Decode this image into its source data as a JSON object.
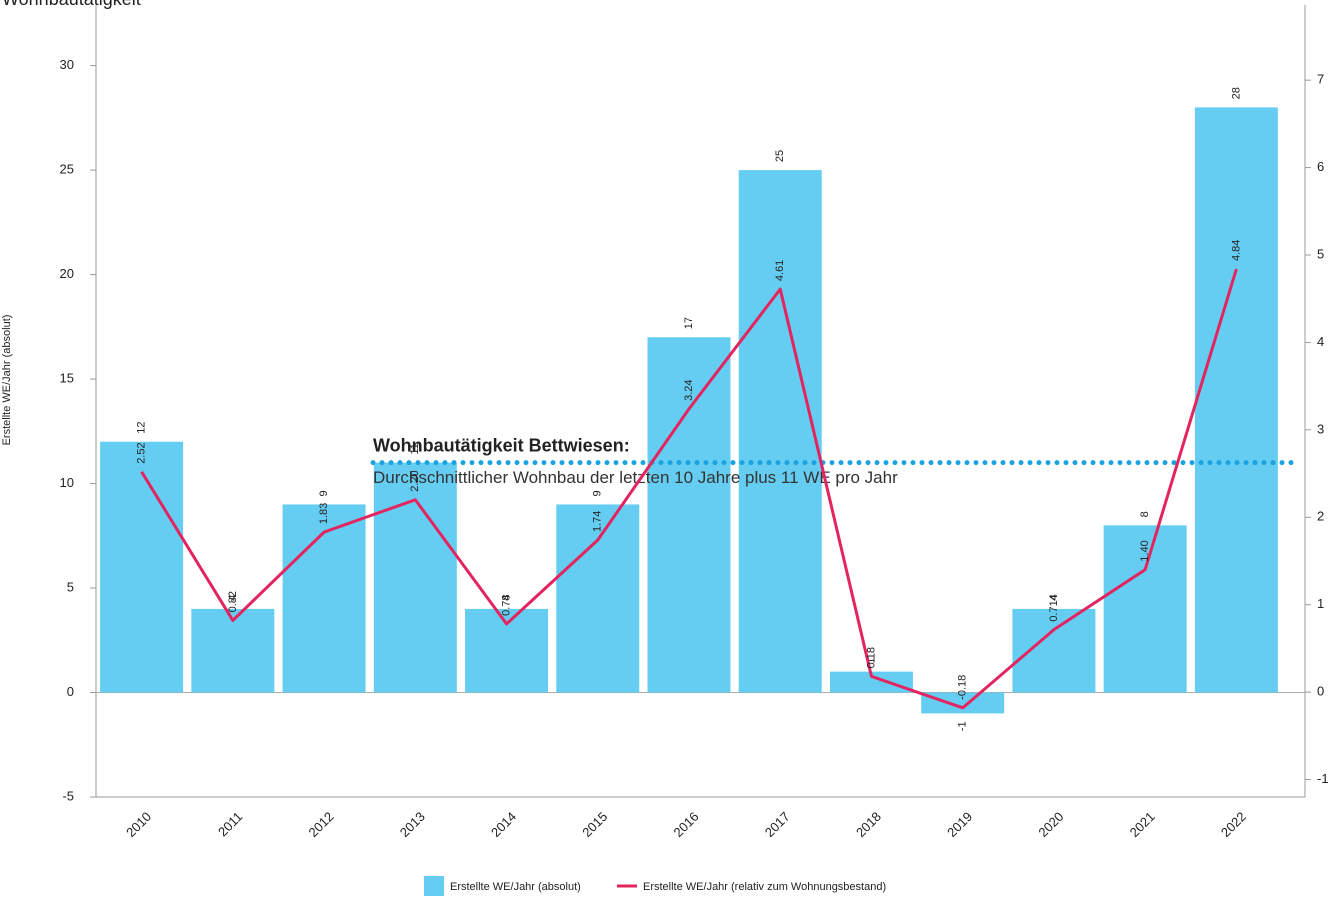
{
  "chart_data": {
    "type": "bar_line",
    "title": "Wohnbautätigkeit",
    "y_label": "Erstellte WE/Jahr (absolut)",
    "categories": [
      "2010",
      "2011",
      "2012",
      "2013",
      "2014",
      "2015",
      "2016",
      "2017",
      "2018",
      "2019",
      "2020",
      "2021",
      "2022"
    ],
    "series": [
      {
        "name": "Erstellte WE/Jahr (absolut)",
        "color": "#66cdf2",
        "type": "bar",
        "values": [
          12,
          4,
          9,
          11,
          4,
          9,
          17,
          25,
          1,
          -1,
          4,
          8,
          28
        ]
      },
      {
        "name": "Erstellte WE/Jahr (relativ zum Wohnungsbestand)",
        "color": "#e3245f",
        "type": "line",
        "axis": "y2",
        "values": [
          2.52,
          0.82,
          1.83,
          2.2,
          0.78,
          1.74,
          3.24,
          4.61,
          0.18,
          -0.18,
          0.714,
          1.4,
          4.84
        ],
        "value_labels": [
          "2.52",
          "0.82",
          "1.83",
          "2.20",
          "0.78",
          "1.74",
          "3.24",
          "4.61",
          "0.18",
          "-0.18",
          "0.714",
          "1.40",
          "4.84"
        ]
      }
    ],
    "ylim": [
      -5,
      32.9
    ],
    "yticks": [
      -5,
      0,
      5,
      10,
      15,
      20,
      25,
      30
    ],
    "y2lim": [
      -1.2,
      7.86
    ],
    "y2ticks": [
      -1,
      0,
      1,
      2,
      3,
      4,
      5,
      6,
      7
    ],
    "annotation": {
      "title": "Wohnbautätigkeit Bettwiesen:",
      "text": "Durchschnittlicher Wohnbau der letzten 10 Jahre plus 11 WE pro Jahr",
      "y": 11,
      "color": "#1aa3e0"
    }
  }
}
